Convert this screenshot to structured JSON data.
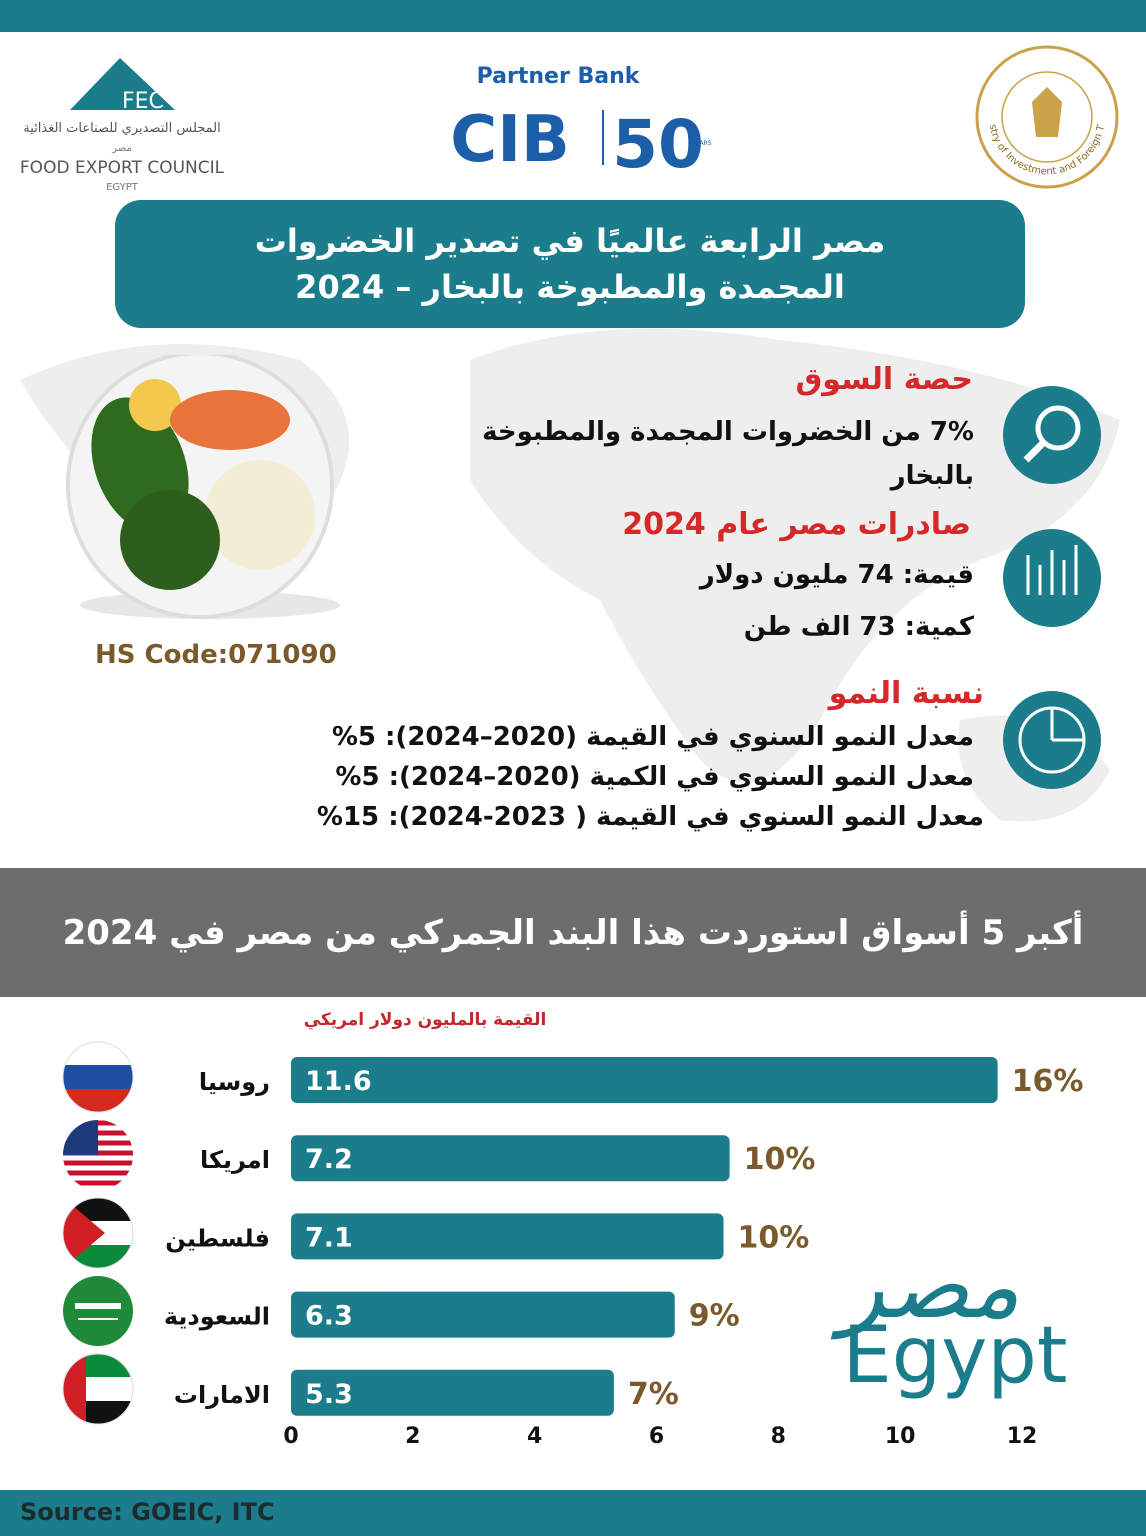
{
  "header": {
    "fec": {
      "abbr": "FEC",
      "arabic": "المجلس التصديري للصناعات الغذائية",
      "country_ar": "مصر",
      "english": "FOOD EXPORT COUNCIL",
      "country_en": "EGYPT"
    },
    "bank": {
      "tagline": "Partner Bank",
      "name": "CIB",
      "anniversary": "50",
      "years": "YEARS"
    },
    "ministry": "Ministry of Investment and Foreign Trade"
  },
  "title": "مصر الرابعة عالميًا في تصدير الخضروات المجمدة والمطبوخة بالبخار – 2024",
  "hs_code": "HS Code:071090",
  "sections": [
    {
      "heading": "حصة السوق",
      "lines": [
        "7% من الخضروات المجمدة والمطبوخة بالبخار"
      ]
    },
    {
      "heading": "صادرات مصر عام 2024",
      "lines": [
        "قيمة: 74 مليون دولار",
        "كمية: 73 الف طن"
      ]
    },
    {
      "heading": "نسبة النمو",
      "lines": [
        "معدل النمو السنوي في القيمة (2020–2024): 5%",
        "معدل النمو السنوي في الكمية (2020–2024): 5%",
        "معدل النمو السنوي في القيمة ( 2023-2024): 15%"
      ]
    }
  ],
  "banner": "أكبر 5 أسواق استوردت هذا البند الجمركي من مصر في 2024",
  "chart_data": {
    "type": "bar",
    "orientation": "horizontal",
    "axis_label": "القيمة بالمليون دولار امريكي",
    "categories": [
      "روسيا",
      "امريكا",
      "فلسطين",
      "السعودية",
      "الامارات"
    ],
    "values": [
      11.6,
      7.2,
      7.1,
      6.3,
      5.3
    ],
    "share_labels": [
      "16%",
      "10%",
      "10%",
      "9%",
      "7%"
    ],
    "color": "#1b7c8b",
    "xlim": [
      0,
      12
    ],
    "xticks": [
      0,
      2,
      4,
      6,
      8,
      10,
      12
    ],
    "grid": false
  },
  "brand": {
    "arabic": "مصر",
    "latin": "Egypt"
  },
  "source": "Source: GOEIC, ITC"
}
